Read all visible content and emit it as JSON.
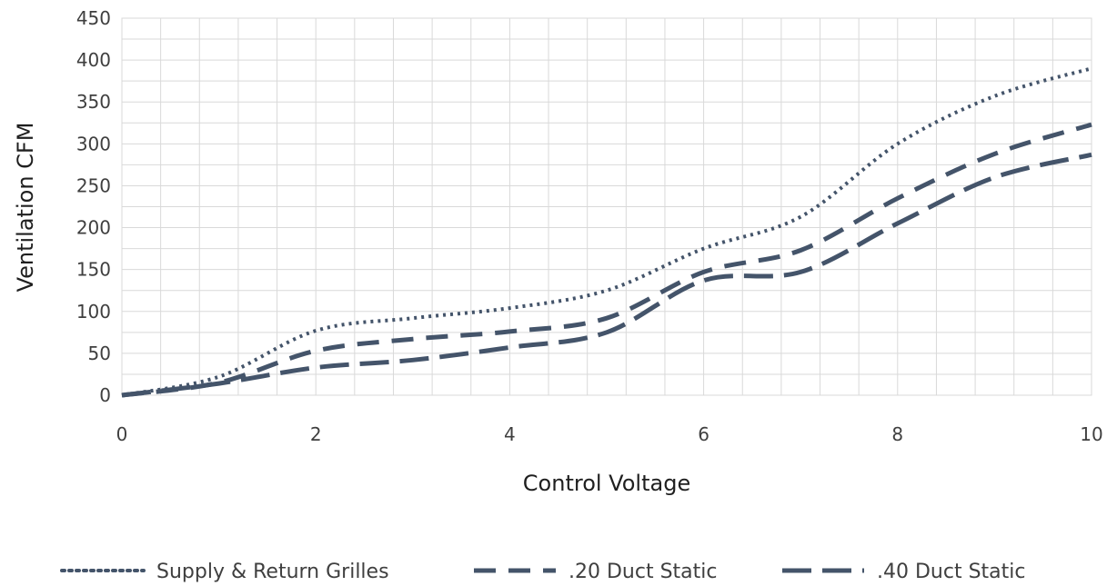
{
  "chart_data": {
    "type": "line",
    "title": "",
    "xlabel": "Control Voltage",
    "ylabel": "Ventilation CFM",
    "xlim": [
      0,
      10
    ],
    "ylim": [
      0,
      450
    ],
    "x_ticks": [
      "0",
      "2",
      "4",
      "6",
      "8",
      "10"
    ],
    "y_ticks": [
      "0",
      "50",
      "100",
      "150",
      "200",
      "250",
      "300",
      "350",
      "400",
      "450"
    ],
    "grid": true,
    "legend_position": "bottom",
    "series": [
      {
        "name": "Supply & Return Grilles",
        "style": "dotted",
        "color": "#44546a",
        "x": [
          0,
          1,
          2,
          3,
          4,
          5,
          6,
          7,
          8,
          9,
          10
        ],
        "y": [
          0,
          22,
          77,
          92,
          104,
          125,
          175,
          213,
          300,
          357,
          390
        ]
      },
      {
        "name": ".20 Duct Static",
        "style": "dashed",
        "color": "#44546a",
        "x": [
          0,
          1,
          2,
          3,
          4,
          5,
          6,
          7,
          8,
          9,
          10
        ],
        "y": [
          0,
          15,
          53,
          67,
          76,
          92,
          147,
          173,
          235,
          288,
          323
        ]
      },
      {
        "name": ".40 Duct Static",
        "style": "long-dashed",
        "color": "#44546a",
        "x": [
          0,
          1,
          2,
          3,
          4,
          5,
          6,
          7,
          8,
          9,
          10
        ],
        "y": [
          0,
          14,
          33,
          42,
          57,
          75,
          137,
          147,
          205,
          260,
          287
        ]
      }
    ]
  }
}
